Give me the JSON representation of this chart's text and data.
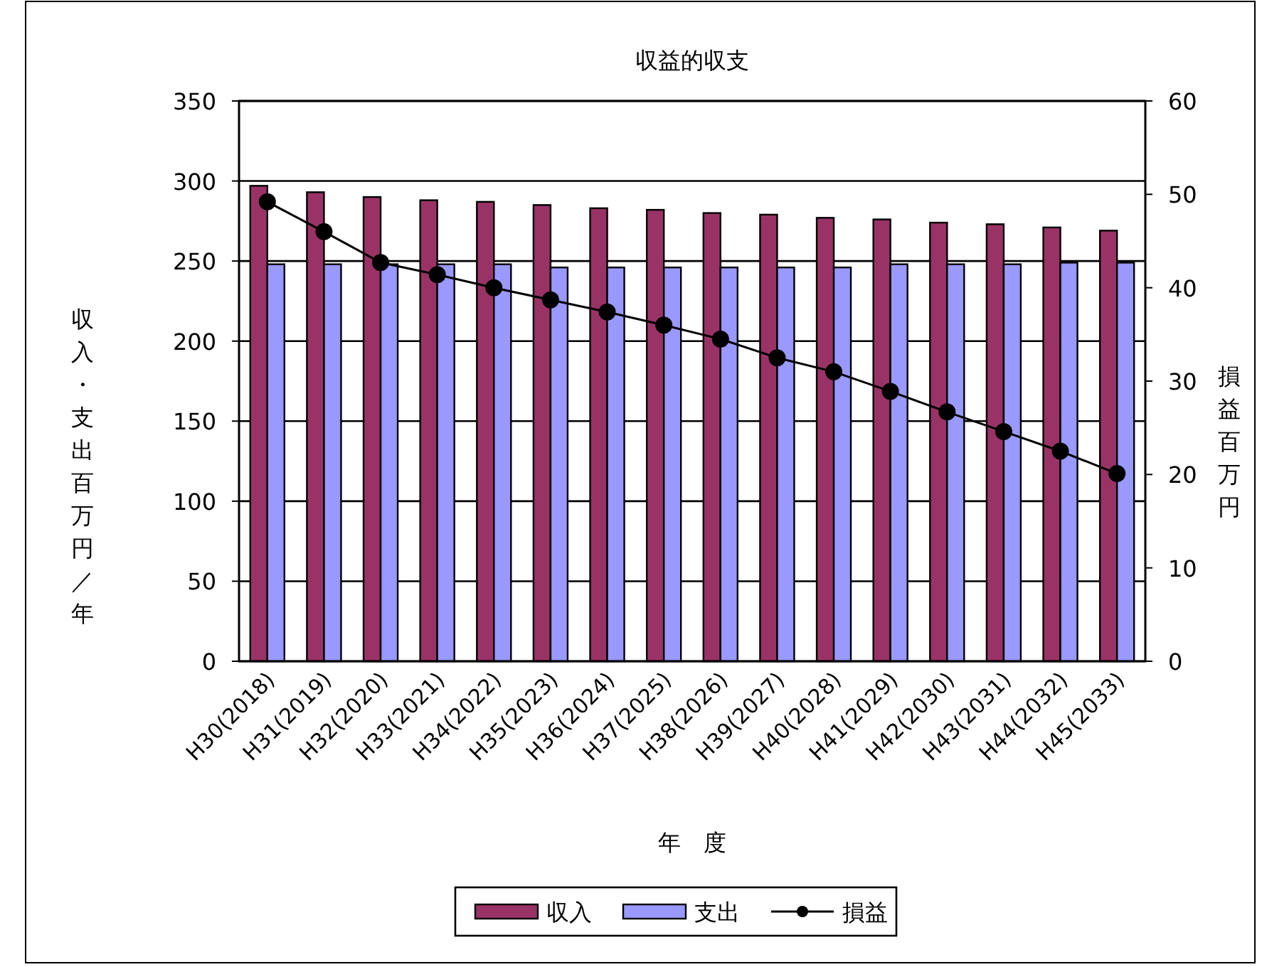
{
  "chart_data": {
    "type": "bar",
    "title": "収益的収支",
    "xlabel": "年　度",
    "ylabel": "収入・支出百万円／年",
    "y2label": "損益百万円",
    "categories": [
      "H30(2018)",
      "H31(2019)",
      "H32(2020)",
      "H33(2021)",
      "H34(2022)",
      "H35(2023)",
      "H36(2024)",
      "H37(2025)",
      "H38(2026)",
      "H39(2027)",
      "H40(2028)",
      "H41(2029)",
      "H42(2030)",
      "H43(2031)",
      "H44(2032)",
      "H45(2033)"
    ],
    "series": [
      {
        "name": "収入",
        "color": "#993366",
        "values": [
          297,
          293,
          290,
          288,
          287,
          285,
          283,
          282,
          280,
          279,
          277,
          276,
          274,
          273,
          271,
          269
        ]
      },
      {
        "name": "支出",
        "color": "#9999ff",
        "values": [
          248,
          248,
          248,
          248,
          248,
          246,
          246,
          246,
          246,
          246,
          246,
          248,
          248,
          248,
          249,
          249
        ]
      },
      {
        "name": "損益",
        "type": "line",
        "axis": "y2",
        "color": "#000000",
        "marker": "circle",
        "values": [
          49.2,
          46.0,
          42.7,
          41.4,
          40.0,
          38.7,
          37.4,
          36.0,
          34.5,
          32.5,
          31.0,
          28.9,
          26.7,
          24.6,
          22.5,
          20.1
        ]
      }
    ],
    "ylim": [
      0,
      350
    ],
    "yticks": [
      0,
      50,
      100,
      150,
      200,
      250,
      300,
      350
    ],
    "y2lim": [
      0,
      60
    ],
    "y2ticks": [
      0,
      10,
      20,
      30,
      40,
      50,
      60
    ],
    "grid": "y",
    "legend": "bottom"
  }
}
